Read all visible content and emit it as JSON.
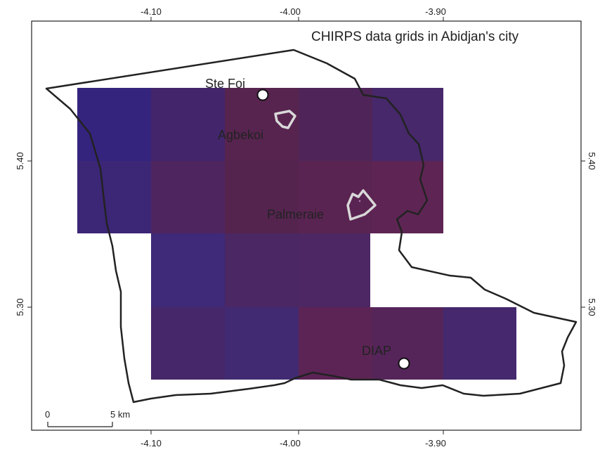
{
  "map": {
    "title": "CHIRPS data grids in Abidjan's city",
    "longitude_ticks": [
      "-4.10",
      "-4.00",
      "-3.90"
    ],
    "latitude_ticks": [
      "5.40",
      "5.30"
    ],
    "places": [
      {
        "name": "Ste Foi",
        "type": "station"
      },
      {
        "name": "Agbekoi",
        "type": "area-outline"
      },
      {
        "name": "Palmeraie",
        "type": "area-outline"
      },
      {
        "name": "DIAP",
        "type": "station"
      }
    ],
    "scale_bar": {
      "start_label": "0",
      "end_label": "5 km"
    },
    "colors": {
      "cell_blue": "#3d2878",
      "cell_mid": "#4d2563",
      "cell_red": "#5e2554",
      "outline": "#222222",
      "area_outline": "#d8d8d8"
    }
  },
  "chart_data": {
    "type": "heatmap",
    "title": "CHIRPS data grids in Abidjan's city",
    "x_ticks": [
      -4.1,
      -4.0,
      -3.9
    ],
    "y_ticks": [
      5.4,
      5.3
    ],
    "cell_size_deg": 0.05,
    "cells_note": "Grid cell color intensity (no values printed)"
  }
}
